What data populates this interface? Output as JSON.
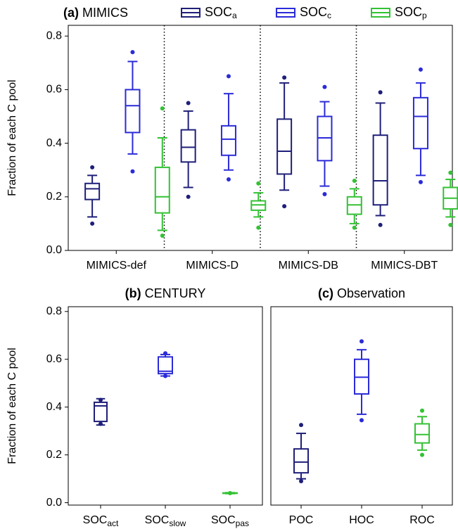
{
  "chart_data": [
    {
      "type": "box",
      "title_label": "(a)",
      "title": "MIMICS",
      "ylabel": "Fraction of each C pool",
      "ylim": [
        0,
        0.84
      ],
      "yticks": [
        {
          "value": 0,
          "label": "0.0"
        },
        {
          "value": 0.2,
          "label": "0.2"
        },
        {
          "value": 0.4,
          "label": "0.4"
        },
        {
          "value": 0.6,
          "label": "0.6"
        },
        {
          "value": 0.8,
          "label": "0.8"
        }
      ],
      "categories": [
        "MIMICS-def",
        "MIMICS-D",
        "MIMICS-DB",
        "MIMICS-DBT"
      ],
      "separators": true,
      "series": [
        {
          "name": "SOC",
          "name_sub": "a",
          "color": "#1f1f7a",
          "values": [
            {
              "whislo": 0.125,
              "q1": 0.19,
              "med": 0.23,
              "q3": 0.25,
              "whishi": 0.28,
              "fliers": [
                0.1,
                0.31
              ]
            },
            {
              "whislo": 0.235,
              "q1": 0.33,
              "med": 0.385,
              "q3": 0.45,
              "whishi": 0.52,
              "fliers": [
                0.2,
                0.55
              ]
            },
            {
              "whislo": 0.225,
              "q1": 0.285,
              "med": 0.37,
              "q3": 0.49,
              "whishi": 0.625,
              "fliers": [
                0.165,
                0.645
              ]
            },
            {
              "whislo": 0.13,
              "q1": 0.17,
              "med": 0.26,
              "q3": 0.43,
              "whishi": 0.55,
              "fliers": [
                0.095,
                0.59
              ]
            }
          ]
        },
        {
          "name": "SOC",
          "name_sub": "c",
          "color": "#2b2bd9",
          "values": [
            {
              "whislo": 0.36,
              "q1": 0.44,
              "med": 0.54,
              "q3": 0.6,
              "whishi": 0.705,
              "fliers": [
                0.295,
                0.74
              ]
            },
            {
              "whislo": 0.3,
              "q1": 0.355,
              "med": 0.415,
              "q3": 0.465,
              "whishi": 0.585,
              "fliers": [
                0.265,
                0.65
              ]
            },
            {
              "whislo": 0.24,
              "q1": 0.335,
              "med": 0.42,
              "q3": 0.5,
              "whishi": 0.555,
              "fliers": [
                0.21,
                0.61
              ]
            },
            {
              "whislo": 0.28,
              "q1": 0.38,
              "med": 0.5,
              "q3": 0.57,
              "whishi": 0.625,
              "fliers": [
                0.255,
                0.675
              ]
            }
          ]
        },
        {
          "name": "SOC",
          "name_sub": "p",
          "color": "#33c233",
          "values": [
            {
              "whislo": 0.075,
              "q1": 0.14,
              "med": 0.2,
              "q3": 0.31,
              "whishi": 0.42,
              "fliers": [
                0.055,
                0.53
              ]
            },
            {
              "whislo": 0.125,
              "q1": 0.15,
              "med": 0.17,
              "q3": 0.185,
              "whishi": 0.215,
              "fliers": [
                0.085,
                0.25
              ]
            },
            {
              "whislo": 0.1,
              "q1": 0.135,
              "med": 0.17,
              "q3": 0.2,
              "whishi": 0.23,
              "fliers": [
                0.085,
                0.26
              ]
            },
            {
              "whislo": 0.125,
              "q1": 0.155,
              "med": 0.195,
              "q3": 0.235,
              "whishi": 0.265,
              "fliers": [
                0.095,
                0.29
              ]
            }
          ]
        }
      ]
    },
    {
      "type": "box",
      "title_label": "(b)",
      "title": "CENTURY",
      "ylabel": "Fraction of each C pool",
      "ylim": [
        -0.01,
        0.82
      ],
      "yticks": [
        {
          "value": 0,
          "label": "0.0"
        },
        {
          "value": 0.2,
          "label": "0.2"
        },
        {
          "value": 0.4,
          "label": "0.4"
        },
        {
          "value": 0.6,
          "label": "0.6"
        },
        {
          "value": 0.8,
          "label": "0.8"
        }
      ],
      "categories": [
        "SOC",
        "SOC",
        "SOC"
      ],
      "category_subs": [
        "act",
        "slow",
        "pas"
      ],
      "colors": [
        "#1f1f7a",
        "#2b2bd9",
        "#33c233"
      ],
      "values": [
        {
          "whislo": 0.325,
          "q1": 0.34,
          "med": 0.405,
          "q3": 0.42,
          "whishi": 0.435,
          "fliers": [
            0.33,
            0.43
          ]
        },
        {
          "whislo": 0.53,
          "q1": 0.54,
          "med": 0.55,
          "q3": 0.61,
          "whishi": 0.62,
          "fliers": [
            0.53,
            0.625
          ]
        },
        {
          "whislo": 0.038,
          "q1": 0.039,
          "med": 0.04,
          "q3": 0.041,
          "whishi": 0.042,
          "fliers": [
            0.04
          ]
        }
      ]
    },
    {
      "type": "box",
      "title_label": "(c)",
      "title": "Observation",
      "ylim": [
        -0.01,
        0.82
      ],
      "categories": [
        "POC",
        "HOC",
        "ROC"
      ],
      "colors": [
        "#1f1f7a",
        "#2b2bd9",
        "#33c233"
      ],
      "values": [
        {
          "whislo": 0.1,
          "q1": 0.125,
          "med": 0.17,
          "q3": 0.225,
          "whishi": 0.29,
          "fliers": [
            0.09,
            0.325
          ]
        },
        {
          "whislo": 0.37,
          "q1": 0.455,
          "med": 0.525,
          "q3": 0.6,
          "whishi": 0.64,
          "fliers": [
            0.345,
            0.675
          ]
        },
        {
          "whislo": 0.22,
          "q1": 0.25,
          "med": 0.285,
          "q3": 0.33,
          "whishi": 0.36,
          "fliers": [
            0.2,
            0.385
          ]
        }
      ]
    }
  ]
}
